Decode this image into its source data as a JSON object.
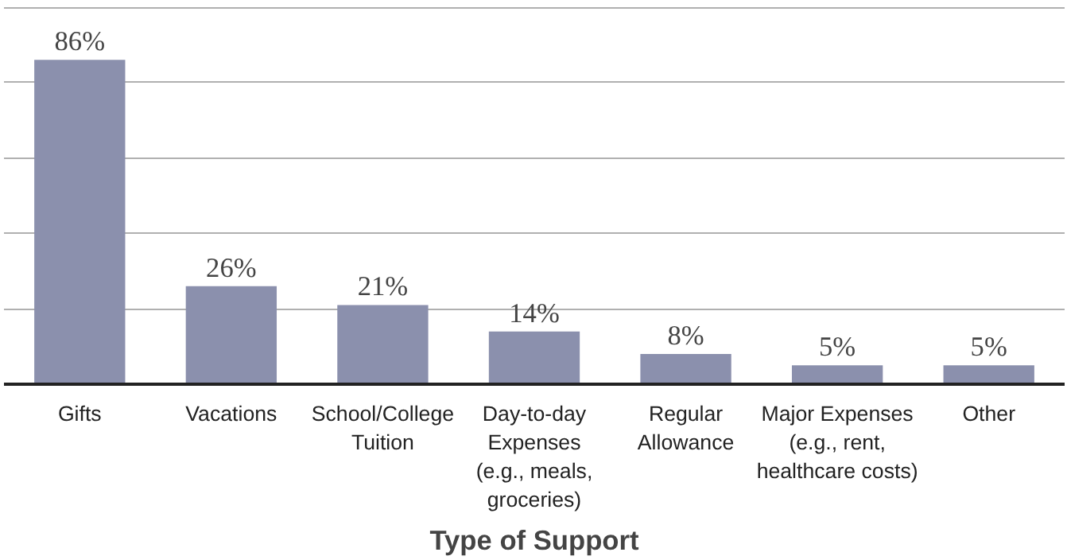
{
  "chart_data": {
    "type": "bar",
    "xlabel": "Type of Support",
    "categories": [
      "Gifts",
      "Vacations",
      "School/College\nTuition",
      "Day-to-day\nExpenses\n(e.g., meals,\ngroceries)",
      "Regular\nAllowance",
      "Major Expenses\n(e.g., rent,\nhealthcare costs)",
      "Other"
    ],
    "values": [
      86,
      26,
      21,
      14,
      8,
      5,
      5
    ],
    "value_labels": [
      "86%",
      "26%",
      "21%",
      "14%",
      "8%",
      "5%",
      "5%"
    ],
    "color": "#8b90ad",
    "ylim": [
      0,
      100
    ],
    "yticks": [
      {
        "value": 0,
        "label": null
      },
      {
        "value": 20,
        "label": null
      },
      {
        "value": 40,
        "label": null
      },
      {
        "value": 60,
        "label": null
      },
      {
        "value": 80,
        "label": null
      },
      {
        "value": 100,
        "label": null
      }
    ],
    "grid": "y",
    "tick_labels": "x"
  }
}
